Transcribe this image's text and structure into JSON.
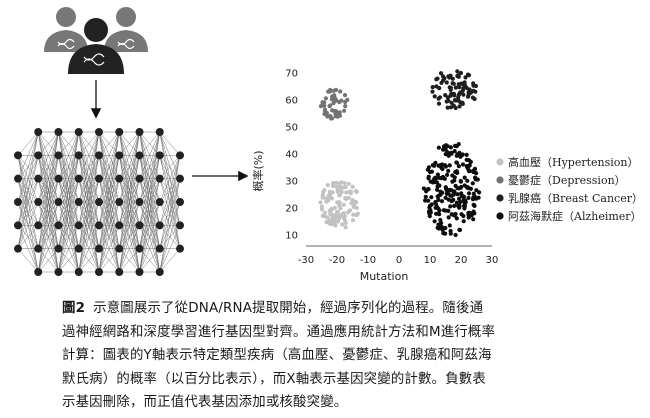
{
  "chart_data": {
    "type": "scatter",
    "xlabel": "Mutation",
    "ylabel": "概率(%)",
    "xticks": [
      -30,
      -20,
      -10,
      0,
      10,
      20,
      30
    ],
    "yticks": [
      10,
      20,
      30,
      40,
      50,
      60,
      70
    ],
    "xlim": [
      -30,
      30
    ],
    "ylim": [
      6,
      74
    ],
    "legend_position": "right",
    "series": [
      {
        "name": "高血壓（Hypertension）",
        "color": "#c2c2c2",
        "cluster": {
          "cx": -19,
          "cy": 21.5,
          "rx": 6.5,
          "ry": 9,
          "n": 110
        }
      },
      {
        "name": "憂鬱症（Depression）",
        "color": "#737373",
        "cluster": {
          "cx": -21,
          "cy": 58.5,
          "rx": 4.5,
          "ry": 5.5,
          "n": 50
        }
      },
      {
        "name": "乳腺癌（Breast Cancer）",
        "color": "#1f1f1f",
        "cluster": {
          "cx": 18,
          "cy": 64,
          "rx": 7.5,
          "ry": 7.5,
          "n": 80
        }
      },
      {
        "name": "阿茲海默症（Alzheimer）",
        "color": "#0d0d0d",
        "cluster": {
          "cx": 17,
          "cy": 27,
          "rx": 9,
          "ry": 17.5,
          "n": 230
        }
      }
    ]
  },
  "caption": {
    "label": "圖2",
    "lines": [
      "示意圖展示了從DNA/RNA提取開始，經過序列化的過程。隨後通",
      "過神經網路和深度學習進行基因型對齊。通過應用統計方法和M進行概率",
      "計算：圖表的Y軸表示特定類型疾病（高血壓、憂鬱症、乳腺癌和阿茲海",
      "默氏病）的概率（以百分比表示），而X軸表示基因突變的計數。負數表",
      "示基因刪除，而正值代表基因添加或核酸突變。"
    ]
  },
  "icons": [
    "people-dna-icon",
    "neural-network-icon",
    "arrow-down-icon",
    "arrow-right-icon"
  ]
}
